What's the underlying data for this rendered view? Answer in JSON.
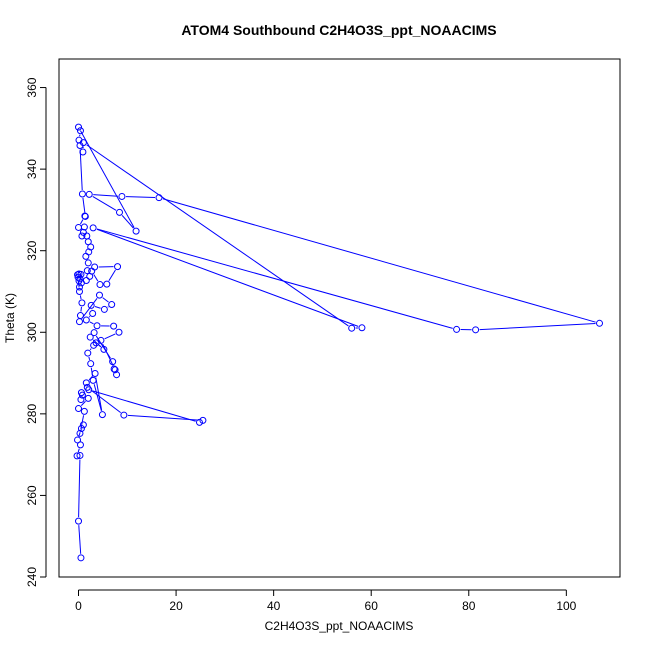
{
  "chart_data": {
    "type": "line",
    "title": "ATOM4 Southbound C2H4O3S_ppt_NOAACIMS",
    "xlabel": "C2H4O3S_ppt_NOAACIMS",
    "ylabel": "Theta (K)",
    "xlim": [
      -4,
      111
    ],
    "ylim": [
      240,
      367
    ],
    "x_ticks": [
      0,
      20,
      40,
      60,
      80,
      100
    ],
    "y_ticks": [
      240,
      260,
      280,
      300,
      320,
      340,
      360
    ],
    "grid": false,
    "legend": "none",
    "series": [
      {
        "color": "#0000ff",
        "marker": "open-circle",
        "points": [
          [
            0.5,
            244.7
          ],
          [
            0.0,
            253.7
          ],
          [
            0.3,
            269.8
          ],
          [
            -0.3,
            269.7
          ],
          [
            0.4,
            272.4
          ],
          [
            -0.2,
            273.6
          ],
          [
            0.6,
            276.4
          ],
          [
            1.0,
            277.3
          ],
          [
            0.3,
            275.2
          ],
          [
            1.2,
            280.6
          ],
          [
            0.0,
            281.3
          ],
          [
            2.0,
            283.8
          ],
          [
            0.5,
            283.5
          ],
          [
            0.8,
            284.6
          ],
          [
            0.6,
            285.2
          ],
          [
            2.1,
            285.9
          ],
          [
            24.8,
            277.9
          ],
          [
            25.5,
            278.4
          ],
          [
            9.3,
            279.7
          ],
          [
            1.8,
            286.5
          ],
          [
            1.6,
            287.6
          ],
          [
            3.4,
            289.9
          ],
          [
            4.9,
            279.8
          ],
          [
            3.0,
            288.2
          ],
          [
            2.5,
            292.3
          ],
          [
            1.9,
            294.9
          ],
          [
            3.1,
            296.8
          ],
          [
            3.6,
            297.4
          ],
          [
            5.2,
            295.8
          ],
          [
            2.4,
            298.8
          ],
          [
            3.2,
            299.9
          ],
          [
            7.0,
            292.8
          ],
          [
            7.3,
            291.0
          ],
          [
            7.8,
            289.6
          ],
          [
            7.5,
            290.8
          ],
          [
            4.6,
            298.0
          ],
          [
            8.3,
            300.0
          ],
          [
            7.2,
            301.5
          ],
          [
            3.8,
            301.6
          ],
          [
            1.6,
            303.0
          ],
          [
            2.9,
            304.6
          ],
          [
            2.6,
            306.6
          ],
          [
            5.3,
            305.6
          ],
          [
            6.8,
            306.8
          ],
          [
            4.3,
            309.1
          ],
          [
            0.2,
            302.6
          ],
          [
            0.4,
            304.1
          ],
          [
            0.7,
            307.2
          ],
          [
            0.2,
            310.0
          ],
          [
            -0.1,
            313.5
          ],
          [
            0.1,
            314.3
          ],
          [
            0.5,
            314.2
          ],
          [
            -0.2,
            314.1
          ],
          [
            0.3,
            313.1
          ],
          [
            0.6,
            312.1
          ],
          [
            0.2,
            311.1
          ],
          [
            0.1,
            312.6
          ],
          [
            1.6,
            312.7
          ],
          [
            2.3,
            313.7
          ],
          [
            1.8,
            315.1
          ],
          [
            2.7,
            315.0
          ],
          [
            4.4,
            311.7
          ],
          [
            5.8,
            311.8
          ],
          [
            8.0,
            316.1
          ],
          [
            3.3,
            316.0
          ],
          [
            2.0,
            317.0
          ],
          [
            1.5,
            318.6
          ],
          [
            2.1,
            319.7
          ],
          [
            2.5,
            320.9
          ],
          [
            2.0,
            322.2
          ],
          [
            1.7,
            323.6
          ],
          [
            0.7,
            323.6
          ],
          [
            1.0,
            324.5
          ],
          [
            1.2,
            325.8
          ],
          [
            0.0,
            325.7
          ],
          [
            1.3,
            328.5
          ],
          [
            1.4,
            328.4
          ],
          [
            0.8,
            333.9
          ],
          [
            0.3,
            345.8
          ],
          [
            0.1,
            347.1
          ],
          [
            0.4,
            349.4
          ],
          [
            0.0,
            350.3
          ],
          [
            11.8,
            324.8
          ],
          [
            8.4,
            329.4
          ],
          [
            2.2,
            333.8
          ],
          [
            8.9,
            333.3
          ],
          [
            16.5,
            333.0
          ],
          [
            106.8,
            302.2
          ],
          [
            81.4,
            300.6
          ],
          [
            77.5,
            300.7
          ],
          [
            3.0,
            325.6
          ],
          [
            58.1,
            301.1
          ],
          [
            56.0,
            301.0
          ],
          [
            1.0,
            346.5
          ],
          [
            0.9,
            344.2
          ]
        ]
      }
    ]
  }
}
